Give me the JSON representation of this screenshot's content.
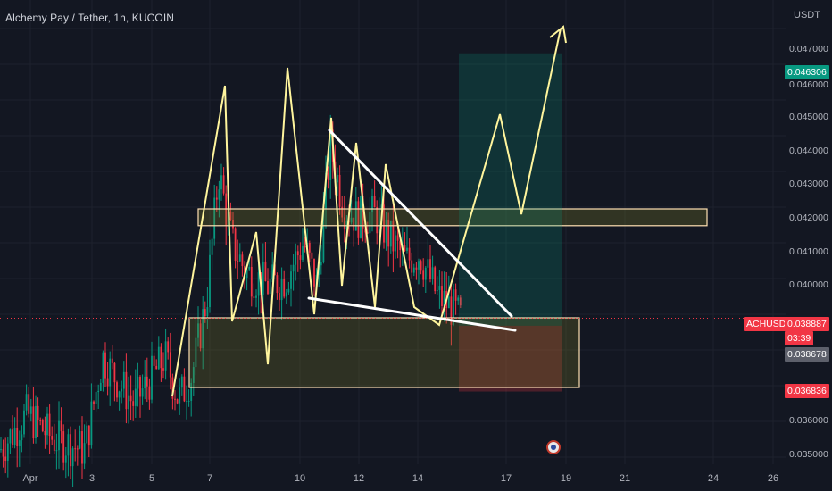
{
  "header": {
    "title": "Alchemy Pay / Tether, 1h, KUCOIN"
  },
  "axis": {
    "currency": "USDT",
    "price_ticks": [
      "0.047000",
      "0.046000",
      "0.045000",
      "0.044000",
      "0.043000",
      "0.042000",
      "0.041000",
      "0.040000",
      "0.036000",
      "0.035000"
    ],
    "date_ticks": [
      "Apr",
      "3",
      "5",
      "7",
      "10",
      "12",
      "14",
      "17",
      "19",
      "21",
      "24",
      "26"
    ]
  },
  "price_tags": {
    "target": {
      "value": "0.046306",
      "color": "#089981"
    },
    "symbol": "ACHUSDT",
    "last": {
      "value": "0.038887",
      "countdown": "03:39",
      "color": "#f23645"
    },
    "entry": {
      "value": "0.038678",
      "color": "#5d606b"
    },
    "stop": {
      "value": "0.036836",
      "color": "#f23645"
    }
  },
  "colors": {
    "background": "#131722",
    "up_candle": "#089981",
    "down_candle": "#f23645",
    "pattern_line": "#fff59d",
    "trend_line": "#ffffff",
    "zone_fill": "#4a4a1f",
    "target_fill": "#0f4a43",
    "stop_fill": "#5a2a2a"
  },
  "icons": {
    "event_flag": "us-flag-icon"
  },
  "chart_data": {
    "type": "candlestick",
    "symbol": "ACHUSDT",
    "exchange": "KUCOIN",
    "interval": "1h",
    "ylim": [
      0.0348,
      0.0478
    ],
    "last_price": 0.038887,
    "zones": [
      {
        "name": "resistance",
        "low": 0.04148,
        "high": 0.04195
      },
      {
        "name": "support",
        "low": 0.03695,
        "high": 0.0389
      }
    ],
    "position": {
      "entry": 0.038678,
      "target": 0.046306,
      "stop": 0.036836
    },
    "zigzag_path_prices": [
      0.0367,
      0.0454,
      0.0388,
      0.0413,
      0.0376,
      0.0412,
      0.0373,
      0.0458,
      0.0393,
      0.0448,
      0.0396,
      0.0437,
      0.0402,
      0.0431,
      0.0386,
      0.0412,
      0.039,
      0.0387,
      0.0446,
      0.0418,
      0.047
    ]
  }
}
